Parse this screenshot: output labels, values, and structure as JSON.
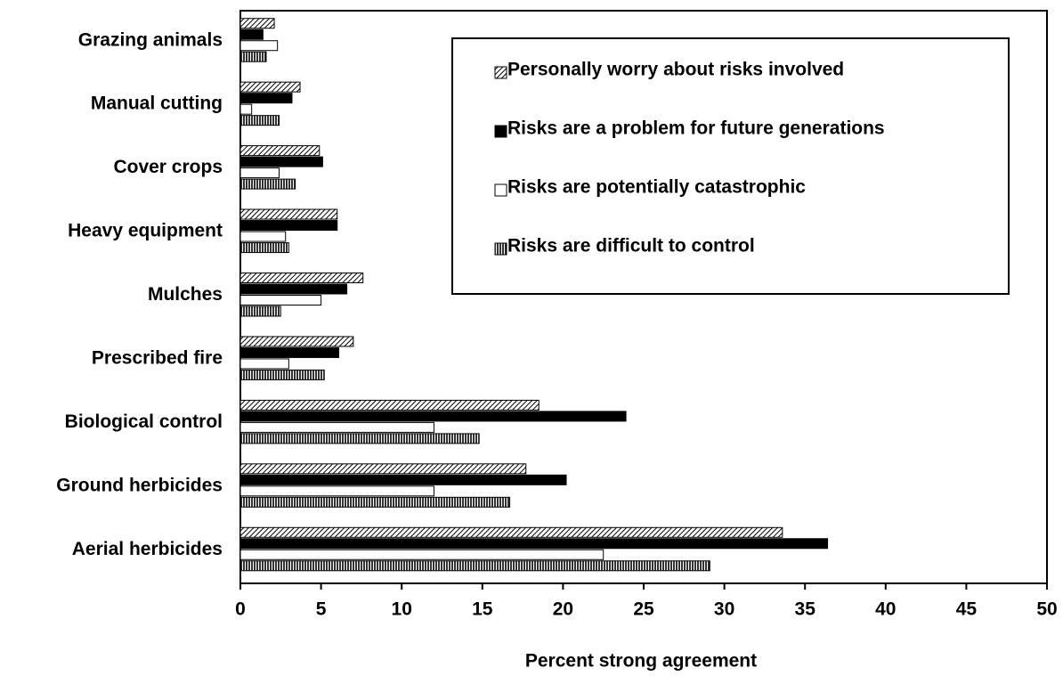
{
  "chart_data": {
    "type": "hbar",
    "x_label": "Percent strong agreement",
    "categories": [
      "Grazing animals",
      "Manual cutting",
      "Cover crops",
      "Heavy equipment",
      "Mulches",
      "Prescribed fire",
      "Biological control",
      "Ground herbicides",
      "Aerial herbicides"
    ],
    "series": [
      {
        "name": "Personally worry about risks involved",
        "color": "#9a9a9a",
        "pattern": "diagonal",
        "values": [
          2.1,
          3.7,
          4.9,
          6.0,
          7.6,
          7.0,
          18.5,
          17.7,
          33.6
        ]
      },
      {
        "name": "Risks are a problem for future generations",
        "color": "#000000",
        "pattern": "none",
        "values": [
          1.4,
          3.2,
          5.1,
          6.0,
          6.6,
          6.1,
          23.9,
          20.2,
          36.4
        ]
      },
      {
        "name": "Risks are potentially catastrophic",
        "color": "#ffffff",
        "pattern": "none",
        "values": [
          2.3,
          0.7,
          2.4,
          2.8,
          5.0,
          3.0,
          12.0,
          12.0,
          22.5
        ]
      },
      {
        "name": "Risks are difficult to control",
        "color": "#8a8a8a",
        "pattern": "vertical",
        "values": [
          1.6,
          2.4,
          3.4,
          3.0,
          2.5,
          5.2,
          14.8,
          16.7,
          29.1
        ]
      }
    ],
    "xlim": [
      0,
      50
    ],
    "xticks": [
      0,
      5,
      10,
      15,
      20,
      25,
      30,
      35,
      40,
      45,
      50
    ],
    "legend": "upper right"
  }
}
